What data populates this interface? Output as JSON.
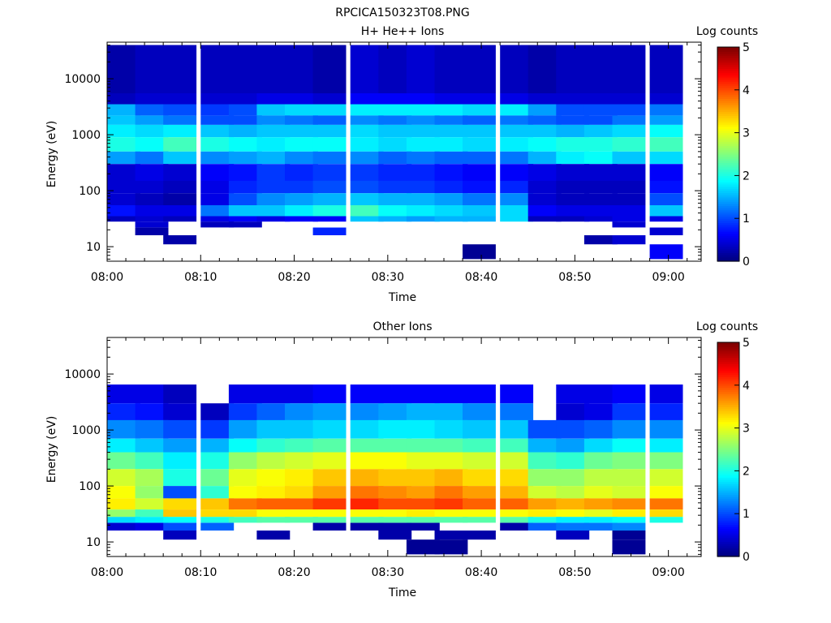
{
  "figure_title": "RPCICA150323T08.PNG",
  "chart_data": [
    {
      "type": "heatmap",
      "title": "H+ He++ Ions",
      "xlabel": "Time",
      "ylabel": "Energy (eV)",
      "x_tick_labels": [
        "08:00",
        "08:10",
        "08:20",
        "08:30",
        "08:40",
        "08:50",
        "09:00"
      ],
      "y_tick_labels": [
        "10",
        "100",
        "1000",
        "10000"
      ],
      "y_scale": "log",
      "colorbar": {
        "label": "Log counts",
        "ticks": [
          "0",
          "1",
          "2",
          "3",
          "4",
          "5"
        ],
        "range": [
          0,
          5
        ]
      },
      "time_bins": [
        "08:00",
        "08:03",
        "08:06",
        "08:10",
        "08:13",
        "08:16",
        "08:19",
        "08:22",
        "08:26",
        "08:29",
        "08:32",
        "08:35",
        "08:38",
        "08:42",
        "08:45",
        "08:48",
        "08:51",
        "08:54",
        "08:58"
      ],
      "energy_bands": [
        {
          "energy_range_eV": [
            5500,
            40000
          ],
          "log_counts": [
            0.2,
            0.3,
            0.3,
            0.3,
            0.3,
            0.3,
            0.3,
            0.2,
            0.4,
            0.3,
            0.4,
            0.3,
            0.3,
            0.3,
            0.2,
            0.3,
            0.3,
            0.3,
            0.3
          ]
        },
        {
          "energy_range_eV": [
            3500,
            5500
          ],
          "log_counts": [
            0.3,
            0.4,
            0.4,
            0.4,
            0.4,
            0.5,
            0.5,
            0.4,
            0.6,
            0.6,
            0.6,
            0.5,
            0.5,
            0.5,
            0.4,
            0.4,
            0.4,
            0.4,
            0.4
          ]
        },
        {
          "energy_range_eV": [
            2200,
            3500
          ],
          "log_counts": [
            1.5,
            1.1,
            1.0,
            0.9,
            1.0,
            1.6,
            1.7,
            1.7,
            1.8,
            1.8,
            1.8,
            1.8,
            1.7,
            1.8,
            1.4,
            1.0,
            1.0,
            1.0,
            1.2
          ]
        },
        {
          "energy_range_eV": [
            1500,
            2200
          ],
          "log_counts": [
            1.6,
            1.4,
            1.2,
            1.0,
            1.0,
            1.3,
            1.2,
            1.1,
            1.3,
            1.2,
            1.3,
            1.2,
            1.1,
            1.2,
            1.1,
            1.0,
            1.0,
            1.2,
            1.4
          ]
        },
        {
          "energy_range_eV": [
            900,
            1500
          ],
          "log_counts": [
            1.8,
            1.7,
            1.8,
            1.6,
            1.5,
            1.6,
            1.6,
            1.6,
            1.7,
            1.6,
            1.6,
            1.6,
            1.6,
            1.6,
            1.6,
            1.5,
            1.6,
            1.7,
            1.9
          ]
        },
        {
          "energy_range_eV": [
            500,
            900
          ],
          "log_counts": [
            2.0,
            1.9,
            2.2,
            2.0,
            1.9,
            1.8,
            1.9,
            1.9,
            1.8,
            1.7,
            1.8,
            1.8,
            1.7,
            1.8,
            1.9,
            2.0,
            2.0,
            2.1,
            2.2
          ]
        },
        {
          "energy_range_eV": [
            300,
            500
          ],
          "log_counts": [
            1.4,
            1.2,
            1.6,
            1.3,
            1.4,
            1.5,
            1.3,
            1.2,
            1.3,
            1.1,
            1.2,
            1.1,
            1.1,
            1.2,
            1.5,
            1.8,
            1.9,
            1.6,
            1.7
          ]
        },
        {
          "energy_range_eV": [
            150,
            300
          ],
          "log_counts": [
            0.4,
            0.5,
            0.4,
            0.6,
            0.7,
            0.9,
            0.8,
            0.9,
            0.9,
            0.8,
            0.8,
            0.7,
            0.6,
            0.6,
            0.5,
            0.4,
            0.4,
            0.4,
            0.6
          ]
        },
        {
          "energy_range_eV": [
            90,
            150
          ],
          "log_counts": [
            0.4,
            0.4,
            0.3,
            0.5,
            0.8,
            0.9,
            0.9,
            1.0,
            1.0,
            0.9,
            0.9,
            0.8,
            0.7,
            0.8,
            0.4,
            0.3,
            0.3,
            0.3,
            0.7
          ]
        },
        {
          "energy_range_eV": [
            55,
            90
          ],
          "log_counts": [
            0.4,
            0.3,
            0.2,
            0.5,
            1.0,
            1.3,
            1.4,
            1.5,
            1.6,
            1.5,
            1.5,
            1.4,
            1.2,
            1.3,
            0.4,
            0.3,
            0.3,
            0.3,
            1.0
          ]
        },
        {
          "energy_range_eV": [
            35,
            55
          ],
          "log_counts": [
            0.7,
            0.5,
            0.5,
            1.2,
            1.6,
            1.6,
            1.8,
            2.0,
            2.2,
            1.9,
            1.8,
            1.7,
            1.6,
            1.7,
            0.6,
            0.5,
            0.5,
            0.5,
            1.6
          ]
        },
        {
          "energy_range_eV": [
            28,
            35
          ],
          "log_counts": [
            0.3,
            0.4,
            0.3,
            0.5,
            0.6,
            0.5,
            0.6,
            0.6,
            1.6,
            1.5,
            1.4,
            1.5,
            1.5,
            1.7,
            0.3,
            0.3,
            0.4,
            0.5,
            0.5
          ]
        },
        {
          "energy_range_eV": [
            22,
            28
          ],
          "log_counts": [
            null,
            0.4,
            null,
            0.3,
            0.3,
            null,
            null,
            null,
            null,
            null,
            null,
            null,
            null,
            null,
            null,
            null,
            null,
            0.4,
            null
          ]
        },
        {
          "energy_range_eV": [
            16,
            22
          ],
          "log_counts": [
            null,
            0.2,
            null,
            null,
            null,
            null,
            null,
            0.8,
            null,
            null,
            null,
            null,
            null,
            null,
            null,
            null,
            null,
            null,
            0.4
          ]
        },
        {
          "energy_range_eV": [
            11,
            16
          ],
          "log_counts": [
            null,
            null,
            0.2,
            null,
            null,
            null,
            null,
            null,
            null,
            null,
            null,
            null,
            null,
            null,
            null,
            null,
            0.2,
            0.4,
            null
          ]
        },
        {
          "energy_range_eV": [
            6,
            11
          ],
          "log_counts": [
            null,
            null,
            null,
            null,
            null,
            null,
            null,
            null,
            null,
            null,
            null,
            null,
            0.1,
            null,
            null,
            null,
            null,
            null,
            0.6
          ]
        }
      ]
    },
    {
      "type": "heatmap",
      "title": "Other Ions",
      "xlabel": "Time",
      "ylabel": "Energy (eV)",
      "x_tick_labels": [
        "08:00",
        "08:10",
        "08:20",
        "08:30",
        "08:40",
        "08:50",
        "09:00"
      ],
      "y_tick_labels": [
        "10",
        "100",
        "1000",
        "10000"
      ],
      "y_scale": "log",
      "colorbar": {
        "label": "Log counts",
        "ticks": [
          "0",
          "1",
          "2",
          "3",
          "4",
          "5"
        ],
        "range": [
          0,
          5
        ]
      },
      "time_bins": [
        "08:00",
        "08:03",
        "08:06",
        "08:10",
        "08:13",
        "08:16",
        "08:19",
        "08:22",
        "08:26",
        "08:29",
        "08:32",
        "08:35",
        "08:38",
        "08:42",
        "08:45",
        "08:48",
        "08:51",
        "08:54",
        "08:58"
      ],
      "energy_bands": [
        {
          "energy_range_eV": [
            3000,
            6500
          ],
          "log_counts": [
            0.5,
            0.5,
            0.3,
            null,
            0.5,
            0.5,
            0.5,
            0.6,
            0.6,
            0.6,
            0.6,
            0.6,
            0.6,
            0.6,
            null,
            0.5,
            0.5,
            0.6,
            0.5
          ]
        },
        {
          "energy_range_eV": [
            1500,
            3000
          ],
          "log_counts": [
            0.8,
            0.7,
            0.4,
            0.3,
            0.9,
            1.1,
            1.3,
            1.4,
            1.3,
            1.4,
            1.5,
            1.5,
            1.3,
            1.2,
            null,
            0.4,
            0.5,
            0.9,
            0.8
          ]
        },
        {
          "energy_range_eV": [
            700,
            1500
          ],
          "log_counts": [
            1.3,
            1.2,
            1.0,
            0.9,
            1.4,
            1.6,
            1.6,
            1.7,
            1.7,
            1.8,
            1.8,
            1.7,
            1.6,
            1.6,
            1.0,
            1.0,
            1.1,
            1.3,
            1.3
          ]
        },
        {
          "energy_range_eV": [
            400,
            700
          ],
          "log_counts": [
            1.8,
            1.6,
            1.4,
            1.5,
            1.9,
            2.1,
            2.2,
            2.3,
            2.3,
            2.3,
            2.3,
            2.3,
            2.2,
            2.2,
            1.5,
            1.4,
            1.7,
            1.9,
            1.8
          ]
        },
        {
          "energy_range_eV": [
            200,
            400
          ],
          "log_counts": [
            2.4,
            2.2,
            1.8,
            2.0,
            2.6,
            2.8,
            2.9,
            3.0,
            3.1,
            3.1,
            3.0,
            3.0,
            2.9,
            2.9,
            2.2,
            2.1,
            2.4,
            2.5,
            2.5
          ]
        },
        {
          "energy_range_eV": [
            100,
            200
          ],
          "log_counts": [
            2.9,
            2.7,
            2.0,
            2.4,
            3.0,
            3.1,
            3.2,
            3.4,
            3.5,
            3.4,
            3.4,
            3.5,
            3.3,
            3.3,
            2.6,
            2.6,
            2.8,
            2.8,
            2.9
          ]
        },
        {
          "energy_range_eV": [
            60,
            100
          ],
          "log_counts": [
            3.1,
            2.6,
            1.0,
            2.1,
            3.1,
            3.2,
            3.3,
            3.6,
            3.8,
            3.7,
            3.6,
            3.8,
            3.6,
            3.5,
            2.9,
            2.8,
            3.0,
            2.9,
            3.1
          ]
        },
        {
          "energy_range_eV": [
            38,
            60
          ],
          "log_counts": [
            3.2,
            2.9,
            3.3,
            3.4,
            3.8,
            3.9,
            3.9,
            4.1,
            4.2,
            4.0,
            4.0,
            4.1,
            3.9,
            3.9,
            3.6,
            3.5,
            3.6,
            3.7,
            3.8
          ]
        },
        {
          "energy_range_eV": [
            28,
            38
          ],
          "log_counts": [
            2.6,
            2.2,
            3.4,
            3.3,
            3.3,
            3.1,
            3.1,
            3.1,
            3.1,
            3.1,
            3.2,
            3.1,
            3.1,
            3.1,
            3.2,
            3.1,
            3.0,
            3.2,
            3.3
          ]
        },
        {
          "energy_range_eV": [
            22,
            28
          ],
          "log_counts": [
            1.7,
            1.8,
            1.9,
            2.0,
            2.2,
            2.3,
            2.3,
            2.3,
            2.3,
            2.3,
            2.3,
            2.3,
            2.3,
            2.3,
            2.0,
            1.8,
            1.8,
            1.9,
            2.0
          ]
        },
        {
          "energy_range_eV": [
            16,
            22
          ],
          "log_counts": [
            0.4,
            0.5,
            1.0,
            1.1,
            null,
            null,
            null,
            0.2,
            0.2,
            0.2,
            0.2,
            null,
            null,
            0.2,
            1.1,
            1.2,
            1.2,
            1.3,
            null
          ]
        },
        {
          "energy_range_eV": [
            11,
            16
          ],
          "log_counts": [
            null,
            null,
            0.3,
            null,
            null,
            0.2,
            null,
            null,
            null,
            0.2,
            null,
            0.2,
            0.2,
            null,
            null,
            0.3,
            null,
            0.1,
            null
          ]
        },
        {
          "energy_range_eV": [
            6,
            11
          ],
          "log_counts": [
            null,
            null,
            null,
            null,
            null,
            null,
            null,
            null,
            null,
            null,
            0.1,
            0.1,
            null,
            null,
            null,
            null,
            null,
            0.1,
            null
          ]
        }
      ]
    }
  ]
}
